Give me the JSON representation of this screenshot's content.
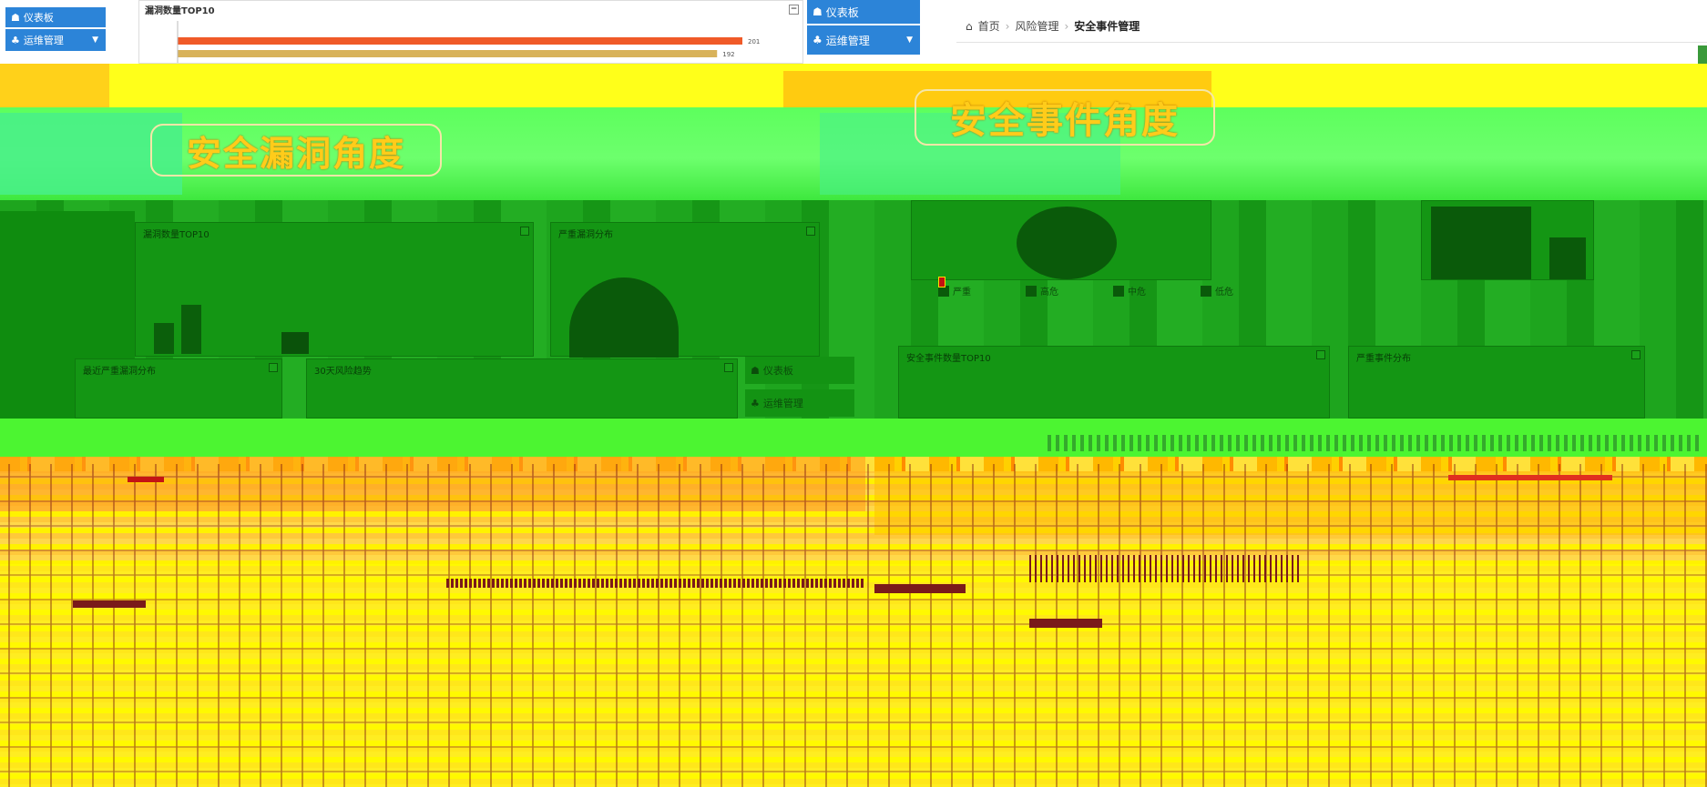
{
  "sidebar": {
    "dashboard_label": "仪表板",
    "ops_label": "运维管理"
  },
  "breadcrumb": {
    "home": "首页",
    "section": "风险管理",
    "current": "安全事件管理"
  },
  "panels": {
    "vuln_top10": "漏洞数量TOP10",
    "vuln_top10_green": "漏洞数量TOP10",
    "severe_dist": "严重漏洞分布",
    "recent_vuln": "最近严重漏洞分布",
    "days30": "30天风险趋势",
    "event_top10": "安全事件数量TOP10",
    "event_dist": "严重事件分布"
  },
  "banners": {
    "vuln_angle": "安全漏洞角度",
    "event_angle": "安全事件角度"
  },
  "legend": [
    "严重",
    "高危",
    "中危",
    "低危"
  ],
  "colors": {
    "sidebar": "#2c84d8",
    "glitch_green": "#1ea51e",
    "glitch_yellow": "#fff200",
    "bar_orange": "#f05a28",
    "bar_tan": "#d8b25a"
  },
  "chart_data": {
    "type": "bar",
    "orientation": "horizontal",
    "title": "漏洞数量TOP10",
    "values": [
      201,
      192
    ],
    "value_labels": [
      "201",
      "192"
    ]
  }
}
